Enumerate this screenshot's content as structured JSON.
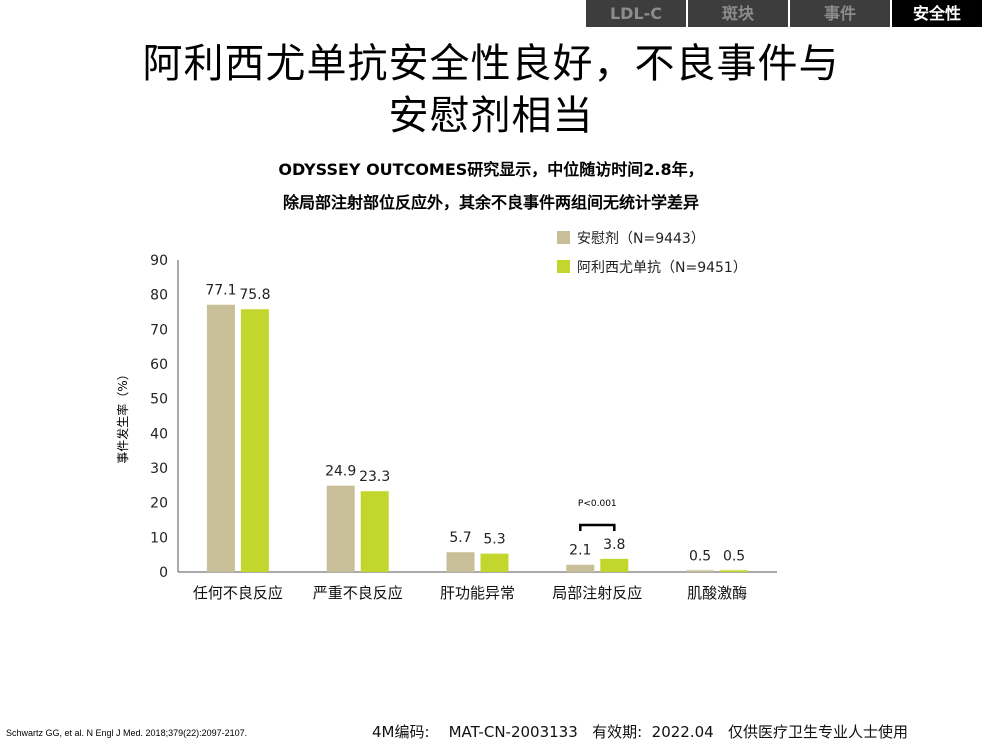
{
  "tabs": [
    {
      "label": "LDL-C",
      "active": false
    },
    {
      "label": "斑块",
      "active": false
    },
    {
      "label": "事件",
      "active": false
    },
    {
      "label": "安全性",
      "active": true
    }
  ],
  "header": {
    "title_line1": "阿利西尤单抗安全性良好，不良事件与",
    "title_line2": "安慰剂相当",
    "subtitle_line1": "ODYSSEY OUTCOMES研究显示，中位随访时间2.8年，",
    "subtitle_line2": "除局部注射部位反应外，其余不良事件两组间无统计学差异"
  },
  "chart_data": {
    "type": "bar",
    "categories": [
      "任何不良反应",
      "严重不良反应",
      "肝功能异常",
      "局部注射反应",
      "肌酸激酶"
    ],
    "series": [
      {
        "name": "安慰剂（N=9443）",
        "values": [
          77.1,
          24.9,
          5.7,
          2.1,
          0.5
        ],
        "labels": [
          "77.1",
          "24.9",
          "5.7",
          "2.1",
          "0.5"
        ],
        "color": "#c8bf98"
      },
      {
        "name": "阿利西尤单抗（N=9451）",
        "values": [
          75.8,
          23.3,
          5.3,
          3.8,
          0.5
        ],
        "labels": [
          "75.8",
          "23.3",
          "5.3",
          "3.8",
          "0.5"
        ],
        "color": "#c3d62d"
      }
    ],
    "ylabel": "事件发生率（%）",
    "ylim": [
      0,
      90
    ],
    "yticks": [
      "0",
      "10",
      "20",
      "30",
      "40",
      "50",
      "60",
      "70",
      "80",
      "90"
    ],
    "annotation": {
      "text": "P<0.001",
      "category_index": 3
    },
    "legend_position": "top-right",
    "grid": false
  },
  "footer": {
    "reference": "Schwartz GG, et al. N Engl J Med. 2018;379(22):2097-2107.",
    "code": "4M编码:    MAT-CN-2003133   有效期:  2022.04   仅供医疗卫生专业人士使用"
  }
}
